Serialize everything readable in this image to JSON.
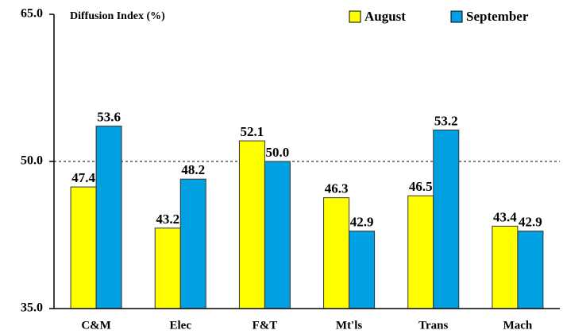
{
  "chart_data": {
    "type": "bar",
    "y_label": "Diffusion Index (%)",
    "categories": [
      "C&M",
      "Elec",
      "F&T",
      "Mt'ls",
      "Trans",
      "Mach"
    ],
    "series": [
      {
        "name": "August",
        "color": "#ffff00",
        "values": [
          47.4,
          43.2,
          52.1,
          46.3,
          46.5,
          43.4
        ],
        "value_labels": [
          "47.4",
          "43.2",
          "52.1",
          "46.3",
          "46.5",
          "43.4"
        ]
      },
      {
        "name": "September",
        "color": "#00a0e3",
        "values": [
          53.6,
          48.2,
          50,
          42.9,
          53.2,
          42.9
        ],
        "value_labels": [
          "53.6",
          "48.2",
          "50.0",
          "42.9",
          "53.2",
          "42.9"
        ]
      }
    ],
    "ylim": [
      35,
      65
    ],
    "yticks": [
      {
        "value": 35,
        "label": "35.0"
      },
      {
        "value": 50,
        "label": "50.0"
      },
      {
        "value": 65,
        "label": "65.0"
      }
    ],
    "reference_line": 50,
    "legend": "top-right"
  }
}
